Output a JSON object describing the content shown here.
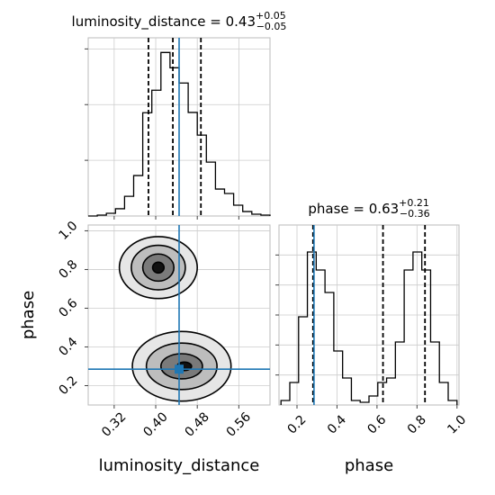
{
  "chart_data": [
    {
      "type": "histogram",
      "title": "luminosity_distance = 0.43",
      "title_sup": "+0.05",
      "title_sub": "−0.05",
      "bins": [
        0.27,
        0.2875,
        0.305,
        0.3225,
        0.34,
        0.3575,
        0.375,
        0.3925,
        0.41,
        0.4275,
        0.445,
        0.4625,
        0.48,
        0.4975,
        0.515,
        0.5325,
        0.55,
        0.5675,
        0.585,
        0.6025,
        0.62
      ],
      "values": [
        0,
        8,
        24,
        65,
        177,
        363,
        927,
        1129,
        1468,
        1331,
        1194,
        930,
        726,
        484,
        242,
        202,
        97,
        40,
        16,
        8
      ],
      "xlim": [
        0.27,
        0.62
      ],
      "xticks": [
        0.32,
        0.4,
        0.48,
        0.56
      ],
      "xtick_labels": false,
      "ylim": [
        0,
        1600
      ],
      "yticks": [
        500,
        1000,
        1500
      ],
      "ytick_labels": false,
      "quantiles": [
        0.386,
        0.433,
        0.487
      ],
      "truth": 0.445,
      "color": "#000000",
      "truth_color": "#1f77b4",
      "grid": true
    },
    {
      "type": "contour",
      "xlabel": "luminosity_distance",
      "ylabel": "phase",
      "xlim": [
        0.27,
        0.62
      ],
      "xticks": [
        0.32,
        {
          "value": 0.4,
          "label": "0.40"
        },
        0.48,
        0.56
      ],
      "ylim": [
        0.1,
        1.03
      ],
      "yticks": [
        0.2,
        0.4,
        0.6,
        0.8,
        {
          "value": 1,
          "label": "1.0"
        }
      ],
      "contours": [
        {
          "x": 0.405,
          "y": 0.81,
          "rx": 0.075,
          "ry": 0.16,
          "fill": "#e6e6e6"
        },
        {
          "x": 0.405,
          "y": 0.81,
          "rx": 0.052,
          "ry": 0.115,
          "fill": "#bdbdbd"
        },
        {
          "x": 0.405,
          "y": 0.81,
          "rx": 0.03,
          "ry": 0.07,
          "fill": "#7a7a7a"
        },
        {
          "x": 0.405,
          "y": 0.81,
          "rx": 0.011,
          "ry": 0.028,
          "fill": "#111111"
        },
        {
          "x": 0.45,
          "y": 0.3,
          "rx": 0.095,
          "ry": 0.18,
          "fill": "#e6e6e6"
        },
        {
          "x": 0.45,
          "y": 0.3,
          "rx": 0.068,
          "ry": 0.12,
          "fill": "#bdbdbd"
        },
        {
          "x": 0.45,
          "y": 0.3,
          "rx": 0.04,
          "ry": 0.065,
          "fill": "#7a7a7a"
        },
        {
          "x": 0.455,
          "y": 0.3,
          "rx": 0.014,
          "ry": 0.022,
          "fill": "#111111"
        }
      ],
      "truth_x": 0.445,
      "truth_y": 0.285,
      "truth_color": "#1f77b4",
      "grid": true
    },
    {
      "type": "histogram",
      "title": "phase = 0.63",
      "title_sup": "+0.21",
      "title_sub": "−0.36",
      "xlabel": "phase",
      "bins": [
        0.12,
        0.164,
        0.208,
        0.252,
        0.296,
        0.34,
        0.384,
        0.428,
        0.472,
        0.516,
        0.56,
        0.604,
        0.648,
        0.692,
        0.736,
        0.78,
        0.824,
        0.868,
        0.912,
        0.956,
        1.0
      ],
      "values": [
        30,
        150,
        588,
        1020,
        900,
        750,
        360,
        180,
        30,
        18,
        60,
        150,
        180,
        420,
        900,
        1020,
        900,
        420,
        150,
        30
      ],
      "xlim": [
        0.11,
        1.01
      ],
      "xticks": [
        0.2,
        0.4,
        0.6,
        0.8,
        {
          "value": 1,
          "label": "1.0"
        }
      ],
      "ylim": [
        0,
        1200
      ],
      "yticks": [
        200,
        400,
        600,
        800,
        1000
      ],
      "ytick_labels": false,
      "quantiles": [
        0.28,
        0.63,
        0.84
      ],
      "truth": 0.285,
      "color": "#000000",
      "truth_color": "#1f77b4",
      "grid": true
    }
  ]
}
